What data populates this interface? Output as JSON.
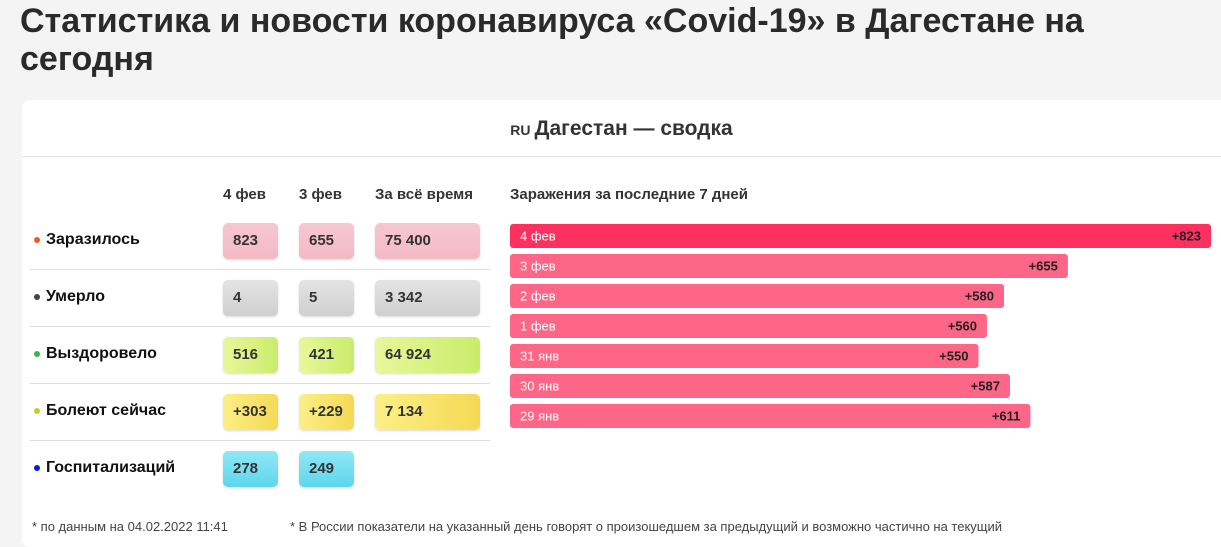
{
  "header": {
    "title": "Статистика и новости коронавируса «Covid-19» в Дагестане на сегодня"
  },
  "summary": {
    "country_code": "RU",
    "title": "Дагестан — сводка",
    "table": {
      "columns": [
        "4 фев",
        "3 фев",
        "За всё время"
      ],
      "rows": [
        {
          "label": "Заразилось",
          "cells": [
            "823",
            "655",
            "75 400"
          ]
        },
        {
          "label": "Умерло",
          "cells": [
            "4",
            "5",
            "3 342"
          ]
        },
        {
          "label": "Выздоровело",
          "cells": [
            "516",
            "421",
            "64 924"
          ]
        },
        {
          "label": "Болеют сейчас",
          "cells": [
            "+303",
            "+229",
            "7 134"
          ]
        },
        {
          "label": "Госпитализаций",
          "cells": [
            "278",
            "249"
          ]
        }
      ]
    }
  },
  "chart_data": {
    "type": "bar",
    "orientation": "horizontal",
    "title": "Заражения за последние 7 дней",
    "categories": [
      "4 фев",
      "3 фев",
      "2 фев",
      "1 фев",
      "31 янв",
      "30 янв",
      "29 янв"
    ],
    "values": [
      823,
      655,
      580,
      560,
      550,
      587,
      611
    ],
    "value_labels": [
      "+823",
      "+655",
      "+580",
      "+560",
      "+550",
      "+587",
      "+611"
    ],
    "colors": [
      "#fd3060",
      "#fd6686",
      "#fd6686",
      "#fd6686",
      "#fd6686",
      "#fd6686",
      "#fd6686"
    ]
  },
  "footnotes": [
    "* по данным на 04.02.2022 11:41",
    "* В России показатели на указанный день говорят о произошедшем за предыдущий и возможно частично на текущий"
  ]
}
